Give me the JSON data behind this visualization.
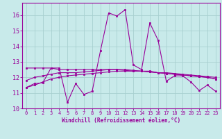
{
  "xlabel": "Windchill (Refroidissement éolien,°C)",
  "xlim": [
    -0.5,
    23.5
  ],
  "ylim": [
    10,
    16.8
  ],
  "yticks": [
    10,
    11,
    12,
    13,
    14,
    15,
    16
  ],
  "xticks": [
    0,
    1,
    2,
    3,
    4,
    5,
    6,
    7,
    8,
    9,
    10,
    11,
    12,
    13,
    14,
    15,
    16,
    17,
    18,
    19,
    20,
    21,
    22,
    23
  ],
  "bg_color": "#c8eaea",
  "grid_color": "#a8d0d0",
  "line_color": "#990099",
  "line1_y": [
    11.35,
    11.6,
    11.65,
    12.6,
    12.6,
    10.4,
    11.6,
    10.9,
    11.1,
    13.7,
    16.15,
    15.95,
    16.35,
    12.8,
    12.5,
    15.5,
    14.4,
    11.75,
    12.1,
    12.1,
    11.7,
    11.15,
    11.5,
    11.1
  ],
  "line2_y": [
    12.6,
    12.6,
    12.6,
    12.6,
    12.5,
    12.5,
    12.5,
    12.5,
    12.5,
    12.5,
    12.5,
    12.5,
    12.45,
    12.4,
    12.4,
    12.4,
    12.3,
    12.25,
    12.2,
    12.15,
    12.1,
    12.05,
    12.0,
    11.9
  ],
  "line3_y": [
    11.8,
    12.0,
    12.1,
    12.2,
    12.3,
    12.3,
    12.3,
    12.35,
    12.4,
    12.45,
    12.5,
    12.5,
    12.5,
    12.45,
    12.4,
    12.35,
    12.3,
    12.25,
    12.2,
    12.15,
    12.1,
    12.05,
    12.0,
    11.9
  ],
  "line4_y": [
    11.35,
    11.5,
    11.7,
    11.9,
    12.0,
    12.1,
    12.15,
    12.2,
    12.25,
    12.3,
    12.35,
    12.4,
    12.4,
    12.4,
    12.4,
    12.35,
    12.3,
    12.3,
    12.25,
    12.2,
    12.15,
    12.1,
    12.05,
    12.0
  ]
}
